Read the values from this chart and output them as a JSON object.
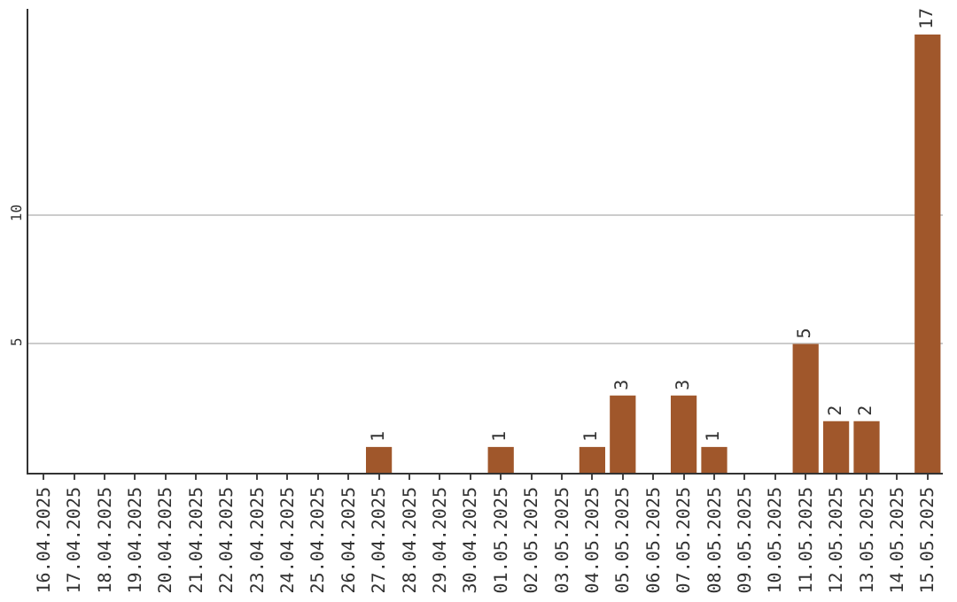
{
  "chart_data": {
    "type": "bar",
    "categories": [
      "16.04.2025",
      "17.04.2025",
      "18.04.2025",
      "19.04.2025",
      "20.04.2025",
      "21.04.2025",
      "22.04.2025",
      "23.04.2025",
      "24.04.2025",
      "25.04.2025",
      "26.04.2025",
      "27.04.2025",
      "28.04.2025",
      "29.04.2025",
      "30.04.2025",
      "01.05.2025",
      "02.05.2025",
      "03.05.2025",
      "04.05.2025",
      "05.05.2025",
      "06.05.2025",
      "07.05.2025",
      "08.05.2025",
      "09.05.2025",
      "10.05.2025",
      "11.05.2025",
      "12.05.2025",
      "13.05.2025",
      "14.05.2025",
      "15.05.2025"
    ],
    "values": [
      0,
      0,
      0,
      0,
      0,
      0,
      0,
      0,
      0,
      0,
      0,
      1,
      0,
      0,
      0,
      1,
      0,
      0,
      1,
      3,
      0,
      3,
      1,
      0,
      0,
      5,
      2,
      2,
      0,
      17
    ],
    "value_labels": [
      null,
      null,
      null,
      null,
      null,
      null,
      null,
      null,
      null,
      null,
      null,
      "1",
      null,
      null,
      null,
      "1",
      null,
      null,
      "1",
      "3",
      null,
      "3",
      "1",
      null,
      null,
      "5",
      "2",
      "2",
      null,
      "17"
    ],
    "color": "#a0572b",
    "ylim": [
      0,
      18
    ],
    "yticks": [
      5,
      10
    ],
    "grid": "y",
    "legend": false
  }
}
